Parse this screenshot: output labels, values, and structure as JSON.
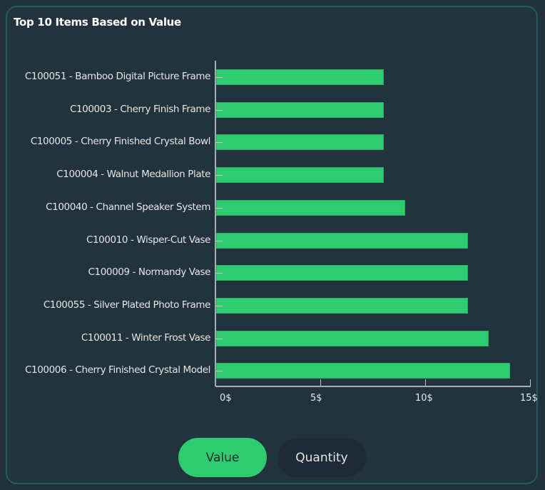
{
  "card": {
    "title": "Top 10 Items Based on Value"
  },
  "toggle": {
    "value_label": "Value",
    "quantity_label": "Quantity",
    "active": "Value"
  },
  "colors": {
    "bar": "#2ecc71",
    "background": "#21333c",
    "border": "#1f5c63",
    "inactive_button": "#1e2a38"
  },
  "chart_data": {
    "type": "bar",
    "orientation": "horizontal",
    "title": "Top 10 Items Based on Value",
    "xlabel": "",
    "ylabel": "",
    "xlim": [
      0,
      15
    ],
    "x_ticks": [
      "0$",
      "5$",
      "10$",
      "15$"
    ],
    "categories": [
      "C100051 - Bamboo Digital Picture Frame",
      "C100003 - Cherry Finish Frame",
      "C100005 - Cherry Finished Crystal Bowl",
      "C100004 - Walnut Medallion Plate",
      "C100040 - Channel Speaker System",
      "C100010 - Wisper-Cut Vase",
      "C100009 - Normandy Vase",
      "C100055 - Silver Plated Photo Frame",
      "C100011 - Winter Frost Vase",
      "C100006 - Cherry Finished Crystal Model"
    ],
    "values": [
      8,
      8,
      8,
      8,
      9,
      12,
      12,
      12,
      13,
      14
    ],
    "grid": false,
    "legend": "none"
  }
}
